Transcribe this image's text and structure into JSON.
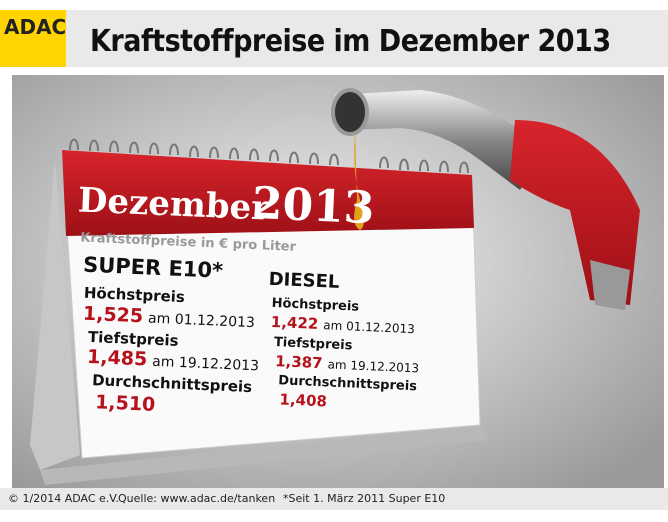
{
  "header": {
    "logo": "ADAC",
    "title": "Kraftstoffpreise im Dezember 2013"
  },
  "calendar": {
    "month": "Dezember",
    "year": "2013",
    "subtitle": "Kraftstoffpreise in € pro Liter",
    "super": {
      "name": "SUPER E10",
      "mark": "*",
      "high": {
        "label": "Höchstpreis",
        "price": "1,525",
        "date": "am 01.12.2013"
      },
      "low": {
        "label": "Tiefstpreis",
        "price": "1,485",
        "date": "am 19.12.2013"
      },
      "average": {
        "label": "Durchschnittspreis",
        "price": "1,510"
      }
    },
    "diesel": {
      "name": "DIESEL",
      "high": {
        "label": "Höchstpreis",
        "price": "1,422",
        "date": "am 01.12.2013"
      },
      "low": {
        "label": "Tiefstpreis",
        "price": "1,387",
        "date": "am 19.12.2013"
      },
      "average": {
        "label": "Durchschnittspreis",
        "price": "1,408"
      }
    }
  },
  "footer": {
    "copyright": "© 1/2014 ADAC e.V.",
    "source": "Quelle: www.adac.de/tanken",
    "note": "*Seit 1. März 2011 Super E10"
  }
}
